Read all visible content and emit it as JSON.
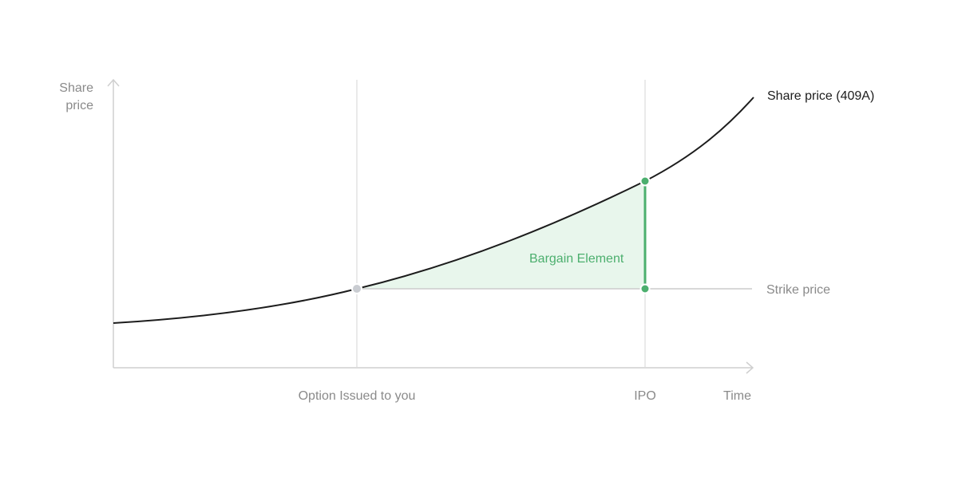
{
  "y_axis_label": [
    "Share",
    "price"
  ],
  "x_axis_label": "Time",
  "curve_label": "Share price (409A)",
  "strike_label": "Strike price",
  "area_label": "Bargain Element",
  "milestones": {
    "option_issued": "Option Issued to you",
    "ipo": "IPO"
  },
  "colors": {
    "curve": "#1c1c1c",
    "axis": "#cfcfcf",
    "guide": "#e3e3e3",
    "strike_line": "#cccccc",
    "text_muted": "#8a8a8a",
    "accent": "#4caf6e",
    "area_fill": "#e8f6ec",
    "marker_grey": "#c9ccd1"
  }
}
